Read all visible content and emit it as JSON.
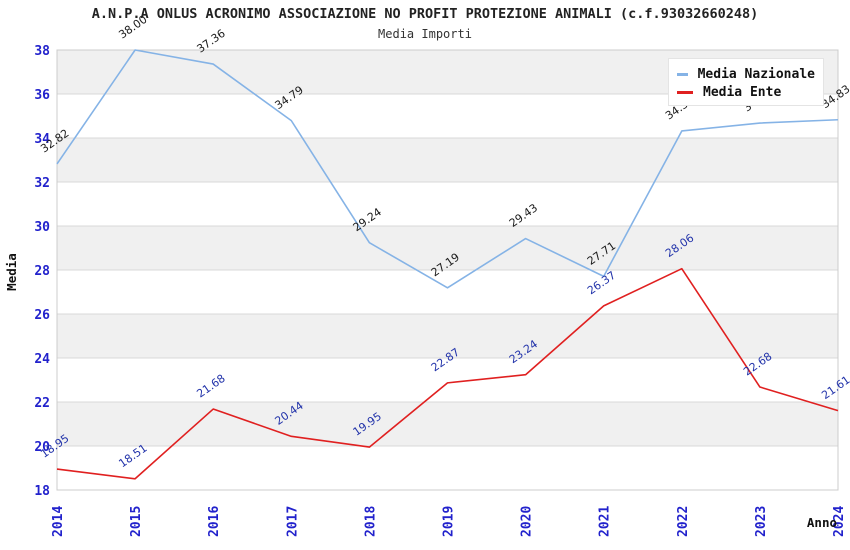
{
  "header": {
    "title": "A.N.P.A ONLUS ACRONIMO ASSOCIAZIONE NO PROFIT PROTEZIONE ANIMALI (c.f.93032660248)",
    "subtitle": "Media Importi"
  },
  "legend": {
    "position": "top-right",
    "items": [
      {
        "label": "Media Nazionale",
        "color": "#85b3e6"
      },
      {
        "label": "Media Ente",
        "color": "#e02020"
      }
    ]
  },
  "axes": {
    "ylabel": "Media",
    "xlabel": "Anno",
    "yticks": [
      18,
      20,
      22,
      24,
      26,
      28,
      30,
      32,
      34,
      36,
      38
    ],
    "xticks": [
      "2014",
      "2015",
      "2016",
      "2017",
      "2018",
      "2019",
      "2020",
      "2021",
      "2022",
      "2023",
      "2024"
    ],
    "tick_color": "#2222cc"
  },
  "chart_data": {
    "type": "line",
    "title": "A.N.P.A ONLUS ACRONIMO ASSOCIAZIONE NO PROFIT PROTEZIONE ANIMALI (c.f.93032660248)",
    "subtitle": "Media Importi",
    "xlabel": "Anno",
    "ylabel": "Media",
    "x": [
      2014,
      2015,
      2016,
      2017,
      2018,
      2019,
      2020,
      2021,
      2022,
      2023,
      2024
    ],
    "ylim": [
      18,
      38
    ],
    "yticks": [
      18,
      20,
      22,
      24,
      26,
      28,
      30,
      32,
      34,
      36,
      38
    ],
    "grid": "horizontal gridlines with alternating gray bands",
    "legend_position": "top-right",
    "series": [
      {
        "name": "Media Nazionale",
        "color": "#85b3e6",
        "label_color": "#1a1a1a",
        "values": [
          32.82,
          38.0,
          37.36,
          34.79,
          29.24,
          27.19,
          29.43,
          27.71,
          34.32,
          34.68,
          34.83
        ]
      },
      {
        "name": "Media Ente",
        "color": "#e02020",
        "label_color": "#2233aa",
        "values": [
          18.95,
          18.51,
          21.68,
          20.44,
          19.95,
          22.87,
          23.24,
          26.37,
          28.06,
          22.68,
          21.61
        ]
      }
    ]
  },
  "style": {
    "band_color": "#f0f0f0",
    "grid_color": "#d9d9d9",
    "plot_border_color": "#cccccc",
    "background": "#ffffff"
  }
}
